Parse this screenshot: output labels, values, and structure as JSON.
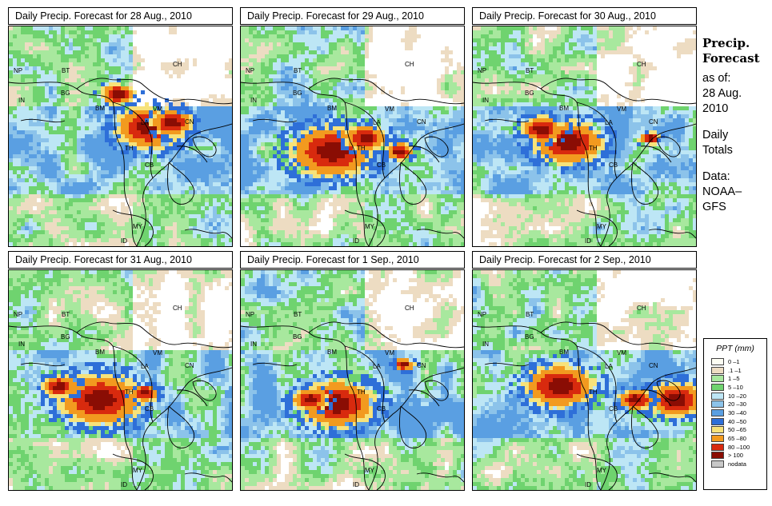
{
  "panels": [
    {
      "title": "Daily Precip. Forecast for  28 Aug., 2010"
    },
    {
      "title": "Daily Precip. Forecast for  29 Aug., 2010"
    },
    {
      "title": "Daily Precip. Forecast for  30 Aug., 2010"
    },
    {
      "title": "Daily Precip. Forecast for  31 Aug., 2010"
    },
    {
      "title": "Daily Precip. Forecast for  1 Sep., 2010"
    },
    {
      "title": "Daily Precip. Forecast for  2 Sep., 2010"
    }
  ],
  "country_labels": [
    "CH",
    "NP",
    "BT",
    "IN",
    "BG",
    "BM",
    "VM",
    "LA",
    "TH",
    "CB",
    "MY",
    "ID",
    "CN"
  ],
  "sidebar": {
    "heading_line1": "Precip.",
    "heading_line2": "Forecast",
    "asof_line1": "as of:",
    "asof_line2": "28 Aug.",
    "asof_line3": "2010",
    "totals_line1": "Daily",
    "totals_line2": "Totals",
    "data_line1": "Data:",
    "data_line2": "NOAA–",
    "data_line3": "GFS"
  },
  "legend": {
    "title": "PPT (mm)",
    "entries": [
      {
        "label": "0 –1",
        "color": "#fdfdf3"
      },
      {
        "label": ".1 –1",
        "color": "#eddcc2"
      },
      {
        "label": "1 –5",
        "color": "#a8e89e"
      },
      {
        "label": "5 –10",
        "color": "#6fd36f"
      },
      {
        "label": "10 –20",
        "color": "#bde6f5"
      },
      {
        "label": "20 –30",
        "color": "#8cc3ea"
      },
      {
        "label": "30 –40",
        "color": "#5a9fe2"
      },
      {
        "label": "40 –50",
        "color": "#2e6fd8"
      },
      {
        "label": "50 –65",
        "color": "#f7e27a"
      },
      {
        "label": "65 –80",
        "color": "#f29a1f"
      },
      {
        "label": "80 –100",
        "color": "#d82a0e"
      },
      {
        "label": "> 100",
        "color": "#8a0d04"
      },
      {
        "label": "nodata",
        "color": "#c8c8c8"
      }
    ]
  }
}
